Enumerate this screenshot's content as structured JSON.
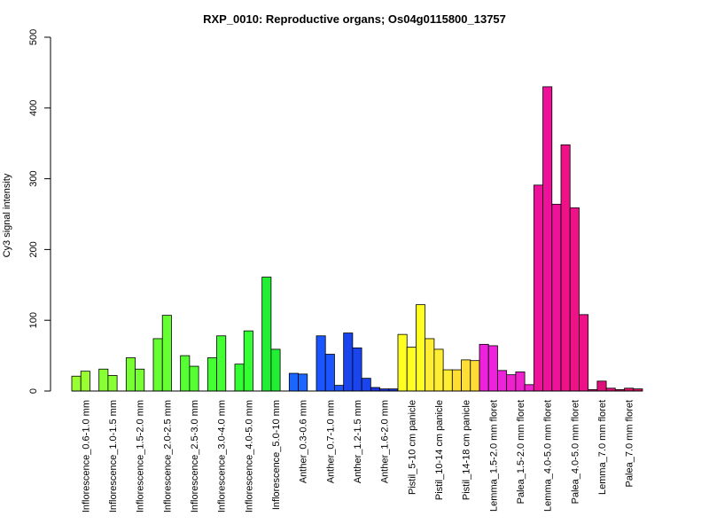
{
  "chart_data": {
    "type": "bar",
    "title": "RXP_0010: Reproductive organs; Os04g0115800_13757",
    "xlabel": "",
    "ylabel": "Cy3 signal intensity",
    "ylim": [
      0,
      500
    ],
    "yticks": [
      0,
      100,
      200,
      300,
      400,
      500
    ],
    "grid": false,
    "legend": "none",
    "groups": [
      {
        "label": "Inflorescence_0.6-1.0 mm",
        "color": "#99ff33",
        "values": [
          21,
          28
        ]
      },
      {
        "label": "Inflorescence_1.0-1.5 mm",
        "color": "#88ff33",
        "values": [
          31,
          22
        ]
      },
      {
        "label": "Inflorescence_1.5-2.0 mm",
        "color": "#77ff33",
        "values": [
          47,
          31
        ]
      },
      {
        "label": "Inflorescence_2.0-2.5 mm",
        "color": "#66ff33",
        "values": [
          74,
          107
        ]
      },
      {
        "label": "Inflorescence_2.5-3.0 mm",
        "color": "#55ff33",
        "values": [
          50,
          35
        ]
      },
      {
        "label": "Inflorescence_3.0-4.0 mm",
        "color": "#44ff33",
        "values": [
          47,
          78
        ]
      },
      {
        "label": "Inflorescence_4.0-5.0 mm",
        "color": "#33ff33",
        "values": [
          38,
          85
        ]
      },
      {
        "label": "Inflorescence_5.0-10 mm",
        "color": "#22ee33",
        "values": [
          161,
          59
        ]
      },
      {
        "label": "Anther_0.3-0.6 mm",
        "color": "#1a66ff",
        "values": [
          25,
          24
        ]
      },
      {
        "label": "Anther_0.7-1.0 mm",
        "color": "#1a55ff",
        "values": [
          78,
          52,
          8
        ]
      },
      {
        "label": "Anther_1.2-1.5 mm",
        "color": "#1a44ee",
        "values": [
          82,
          61,
          18
        ]
      },
      {
        "label": "Anther_1.6-2.0 mm",
        "color": "#1a33dd",
        "values": [
          5,
          3,
          3
        ]
      },
      {
        "label": "Pistil_5-10 cm panicle",
        "color": "#ffff22",
        "values": [
          80,
          62,
          122
        ]
      },
      {
        "label": "Pistil_10-14 cm panicle",
        "color": "#ffee33",
        "values": [
          74,
          59,
          30
        ]
      },
      {
        "label": "Pistil_14-18 cm panicle",
        "color": "#ffdd33",
        "values": [
          30,
          44,
          43
        ]
      },
      {
        "label": "Lemma_1.5-2.0 mm floret",
        "color": "#ee22dd",
        "values": [
          66,
          64,
          29
        ]
      },
      {
        "label": "Palea_1.5-2.0 mm floret",
        "color": "#ee22cc",
        "values": [
          23,
          27,
          9
        ]
      },
      {
        "label": "Lemma_4.0-5.0 mm floret",
        "color": "#ee1199",
        "values": [
          291,
          430,
          264
        ]
      },
      {
        "label": "Palea_4.0-5.0 mm floret",
        "color": "#ee1188",
        "values": [
          348,
          259,
          108
        ]
      },
      {
        "label": "Lemma_7.0 mm floret",
        "color": "#dd1177",
        "values": [
          2,
          14,
          4
        ]
      },
      {
        "label": "Palea_7.0 mm floret",
        "color": "#dd1166",
        "values": [
          2,
          4,
          3
        ]
      }
    ]
  }
}
